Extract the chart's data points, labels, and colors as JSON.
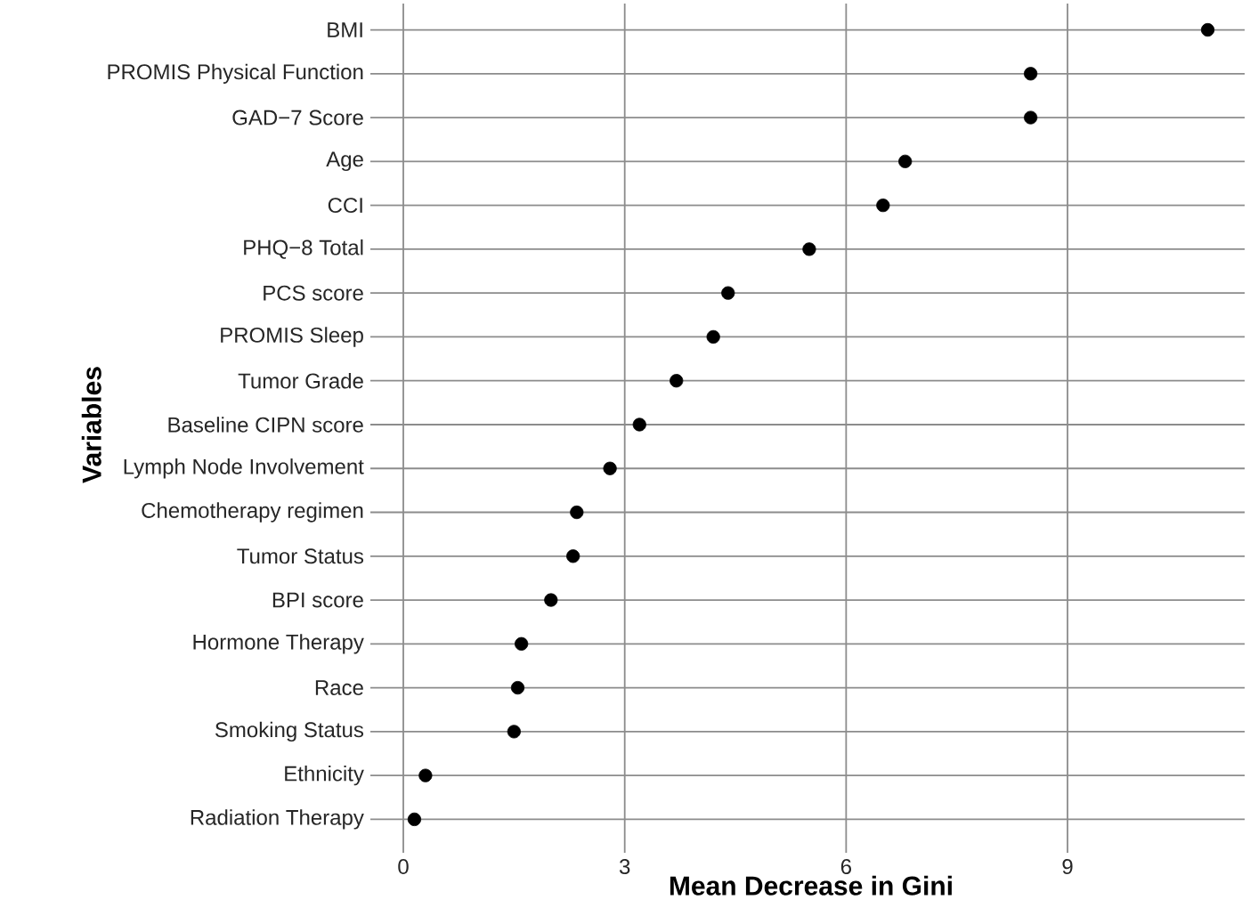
{
  "chart_data": {
    "type": "scatter",
    "orientation": "horizontal",
    "xlabel": "Mean Decrease in Gini",
    "ylabel": "Variables",
    "categories": [
      "BMI",
      "PROMIS Physical Function",
      "GAD−7 Score",
      "Age",
      "CCI",
      "PHQ−8 Total",
      "PCS score",
      "PROMIS Sleep",
      "Tumor Grade",
      "Baseline CIPN score",
      "Lymph Node Involvement",
      "Chemotherapy regimen",
      "Tumor Status",
      "BPI score",
      "Hormone Therapy",
      "Race",
      "Smoking Status",
      "Ethnicity",
      "Radiation Therapy"
    ],
    "values": [
      10.9,
      8.5,
      8.5,
      6.8,
      6.5,
      5.5,
      4.4,
      4.2,
      3.7,
      3.2,
      2.8,
      2.35,
      2.3,
      2.0,
      1.6,
      1.55,
      1.5,
      0.3,
      0.15
    ],
    "color": "#000000",
    "marker": "circle",
    "grid": true,
    "xlim": [
      -0.35,
      11.4
    ],
    "xticks": [
      0,
      3,
      6,
      9
    ]
  }
}
